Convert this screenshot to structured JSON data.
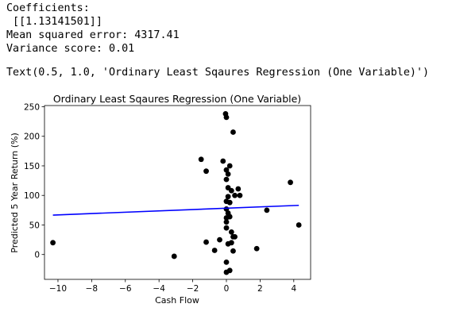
{
  "output": {
    "line1": "Coefficients:",
    "line2": " [[1.13141501]]",
    "line3": "Mean squared error: 4317.41",
    "line4": "Variance score: 0.01",
    "text_repr": "Text(0.5, 1.0, 'Ordinary Least Sqaures Regression (One Variable)')"
  },
  "colors": {
    "points": "#000000",
    "line": "#0000ff"
  },
  "chart_data": {
    "type": "scatter",
    "title": "Ordinary Least Sqaures Regression (One Variable)",
    "xlabel": "Cash Flow",
    "ylabel": "Predicted 5 Year Return (%)",
    "xlim": [
      -10.8,
      5.0
    ],
    "ylim": [
      -42,
      252
    ],
    "xticks": [
      -10,
      -8,
      -6,
      -4,
      -2,
      0,
      2,
      4
    ],
    "xtick_labels": [
      "−10",
      "−8",
      "−6",
      "−4",
      "−2",
      "0",
      "2",
      "4"
    ],
    "yticks": [
      0,
      50,
      100,
      150,
      200,
      250
    ],
    "ytick_labels": [
      "0",
      "50",
      "100",
      "150",
      "200",
      "250"
    ],
    "grid": false,
    "series": [
      {
        "values": [
          [
            -10.3,
            20
          ],
          [
            -3.1,
            -3
          ],
          [
            -1.5,
            161
          ],
          [
            -1.2,
            141
          ],
          [
            -1.2,
            21
          ],
          [
            -0.7,
            7
          ],
          [
            -0.4,
            25
          ],
          [
            -0.2,
            158
          ],
          [
            -0.05,
            238
          ],
          [
            0.0,
            232
          ],
          [
            0.4,
            207
          ],
          [
            0.0,
            143
          ],
          [
            0.2,
            150
          ],
          [
            0.1,
            136
          ],
          [
            0.0,
            127
          ],
          [
            0.1,
            113
          ],
          [
            0.3,
            108
          ],
          [
            0.5,
            100
          ],
          [
            0.7,
            111
          ],
          [
            0.8,
            100
          ],
          [
            0.1,
            98
          ],
          [
            0.0,
            90
          ],
          [
            0.2,
            88
          ],
          [
            0.0,
            77
          ],
          [
            0.1,
            70
          ],
          [
            0.2,
            64
          ],
          [
            0.0,
            62
          ],
          [
            0.0,
            55
          ],
          [
            0.0,
            45
          ],
          [
            0.3,
            38
          ],
          [
            0.4,
            30
          ],
          [
            0.5,
            30
          ],
          [
            0.1,
            18
          ],
          [
            0.3,
            20
          ],
          [
            0.4,
            6
          ],
          [
            0.0,
            -13
          ],
          [
            0.2,
            -27
          ],
          [
            0.0,
            -30
          ],
          [
            1.8,
            10
          ],
          [
            2.4,
            75
          ],
          [
            3.8,
            122
          ],
          [
            4.3,
            50
          ]
        ]
      },
      {
        "type": "line",
        "values": [
          [
            -10.3,
            66.7
          ],
          [
            4.3,
            83.2
          ]
        ]
      }
    ]
  }
}
